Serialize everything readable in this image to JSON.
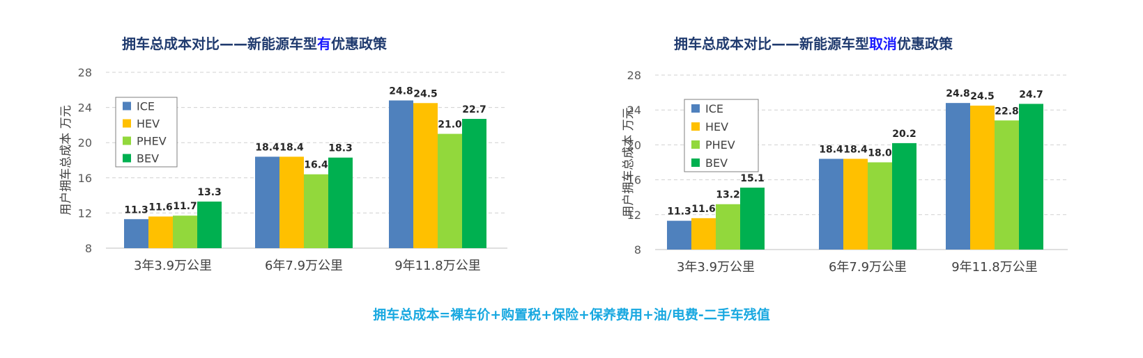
{
  "chart_data": [
    {
      "type": "bar",
      "title_parts": [
        {
          "text": "拥车总成本对比——新能源车型",
          "emphasis": false
        },
        {
          "text": "有",
          "emphasis": true
        },
        {
          "text": "优惠政策",
          "emphasis": false
        }
      ],
      "ylabel": "用户拥车总成本  万元",
      "xlabel": "",
      "ylim": [
        8,
        28
      ],
      "yticks": [
        8,
        12,
        16,
        20,
        24,
        28
      ],
      "grid": true,
      "legend_position": "top-left",
      "categories": [
        "3年3.9万公里",
        "6年7.9万公里",
        "9年11.8万公里"
      ],
      "series": [
        {
          "name": "ICE",
          "color": "#4f81bd",
          "values": [
            11.3,
            18.4,
            24.8
          ]
        },
        {
          "name": "HEV",
          "color": "#ffc000",
          "values": [
            11.6,
            18.4,
            24.5
          ]
        },
        {
          "name": "PHEV",
          "color": "#92d83c",
          "values": [
            11.7,
            16.4,
            21.0
          ]
        },
        {
          "name": "BEV",
          "color": "#00b050",
          "values": [
            13.3,
            18.3,
            22.7
          ]
        }
      ]
    },
    {
      "type": "bar",
      "title_parts": [
        {
          "text": "拥车总成本对比——新能源车型",
          "emphasis": false
        },
        {
          "text": "取消",
          "emphasis": true
        },
        {
          "text": "优惠政策",
          "emphasis": false
        }
      ],
      "ylabel": "用户拥车总成本  万元",
      "xlabel": "",
      "ylim": [
        8,
        28
      ],
      "yticks": [
        8,
        12,
        16,
        20,
        24,
        28
      ],
      "grid": true,
      "legend_position": "top-left",
      "categories": [
        "3年3.9万公里",
        "6年7.9万公里",
        "9年11.8万公里"
      ],
      "series": [
        {
          "name": "ICE",
          "color": "#4f81bd",
          "values": [
            11.3,
            18.4,
            24.8
          ]
        },
        {
          "name": "HEV",
          "color": "#ffc000",
          "values": [
            11.6,
            18.4,
            24.5
          ]
        },
        {
          "name": "PHEV",
          "color": "#92d83c",
          "values": [
            13.2,
            18.0,
            22.8
          ]
        },
        {
          "name": "BEV",
          "color": "#00b050",
          "values": [
            15.1,
            20.2,
            24.7
          ]
        }
      ]
    }
  ],
  "footer": {
    "formula": "拥车总成本=裸车价+购置税+保险+保养费用+油/电费-二手车残值"
  }
}
